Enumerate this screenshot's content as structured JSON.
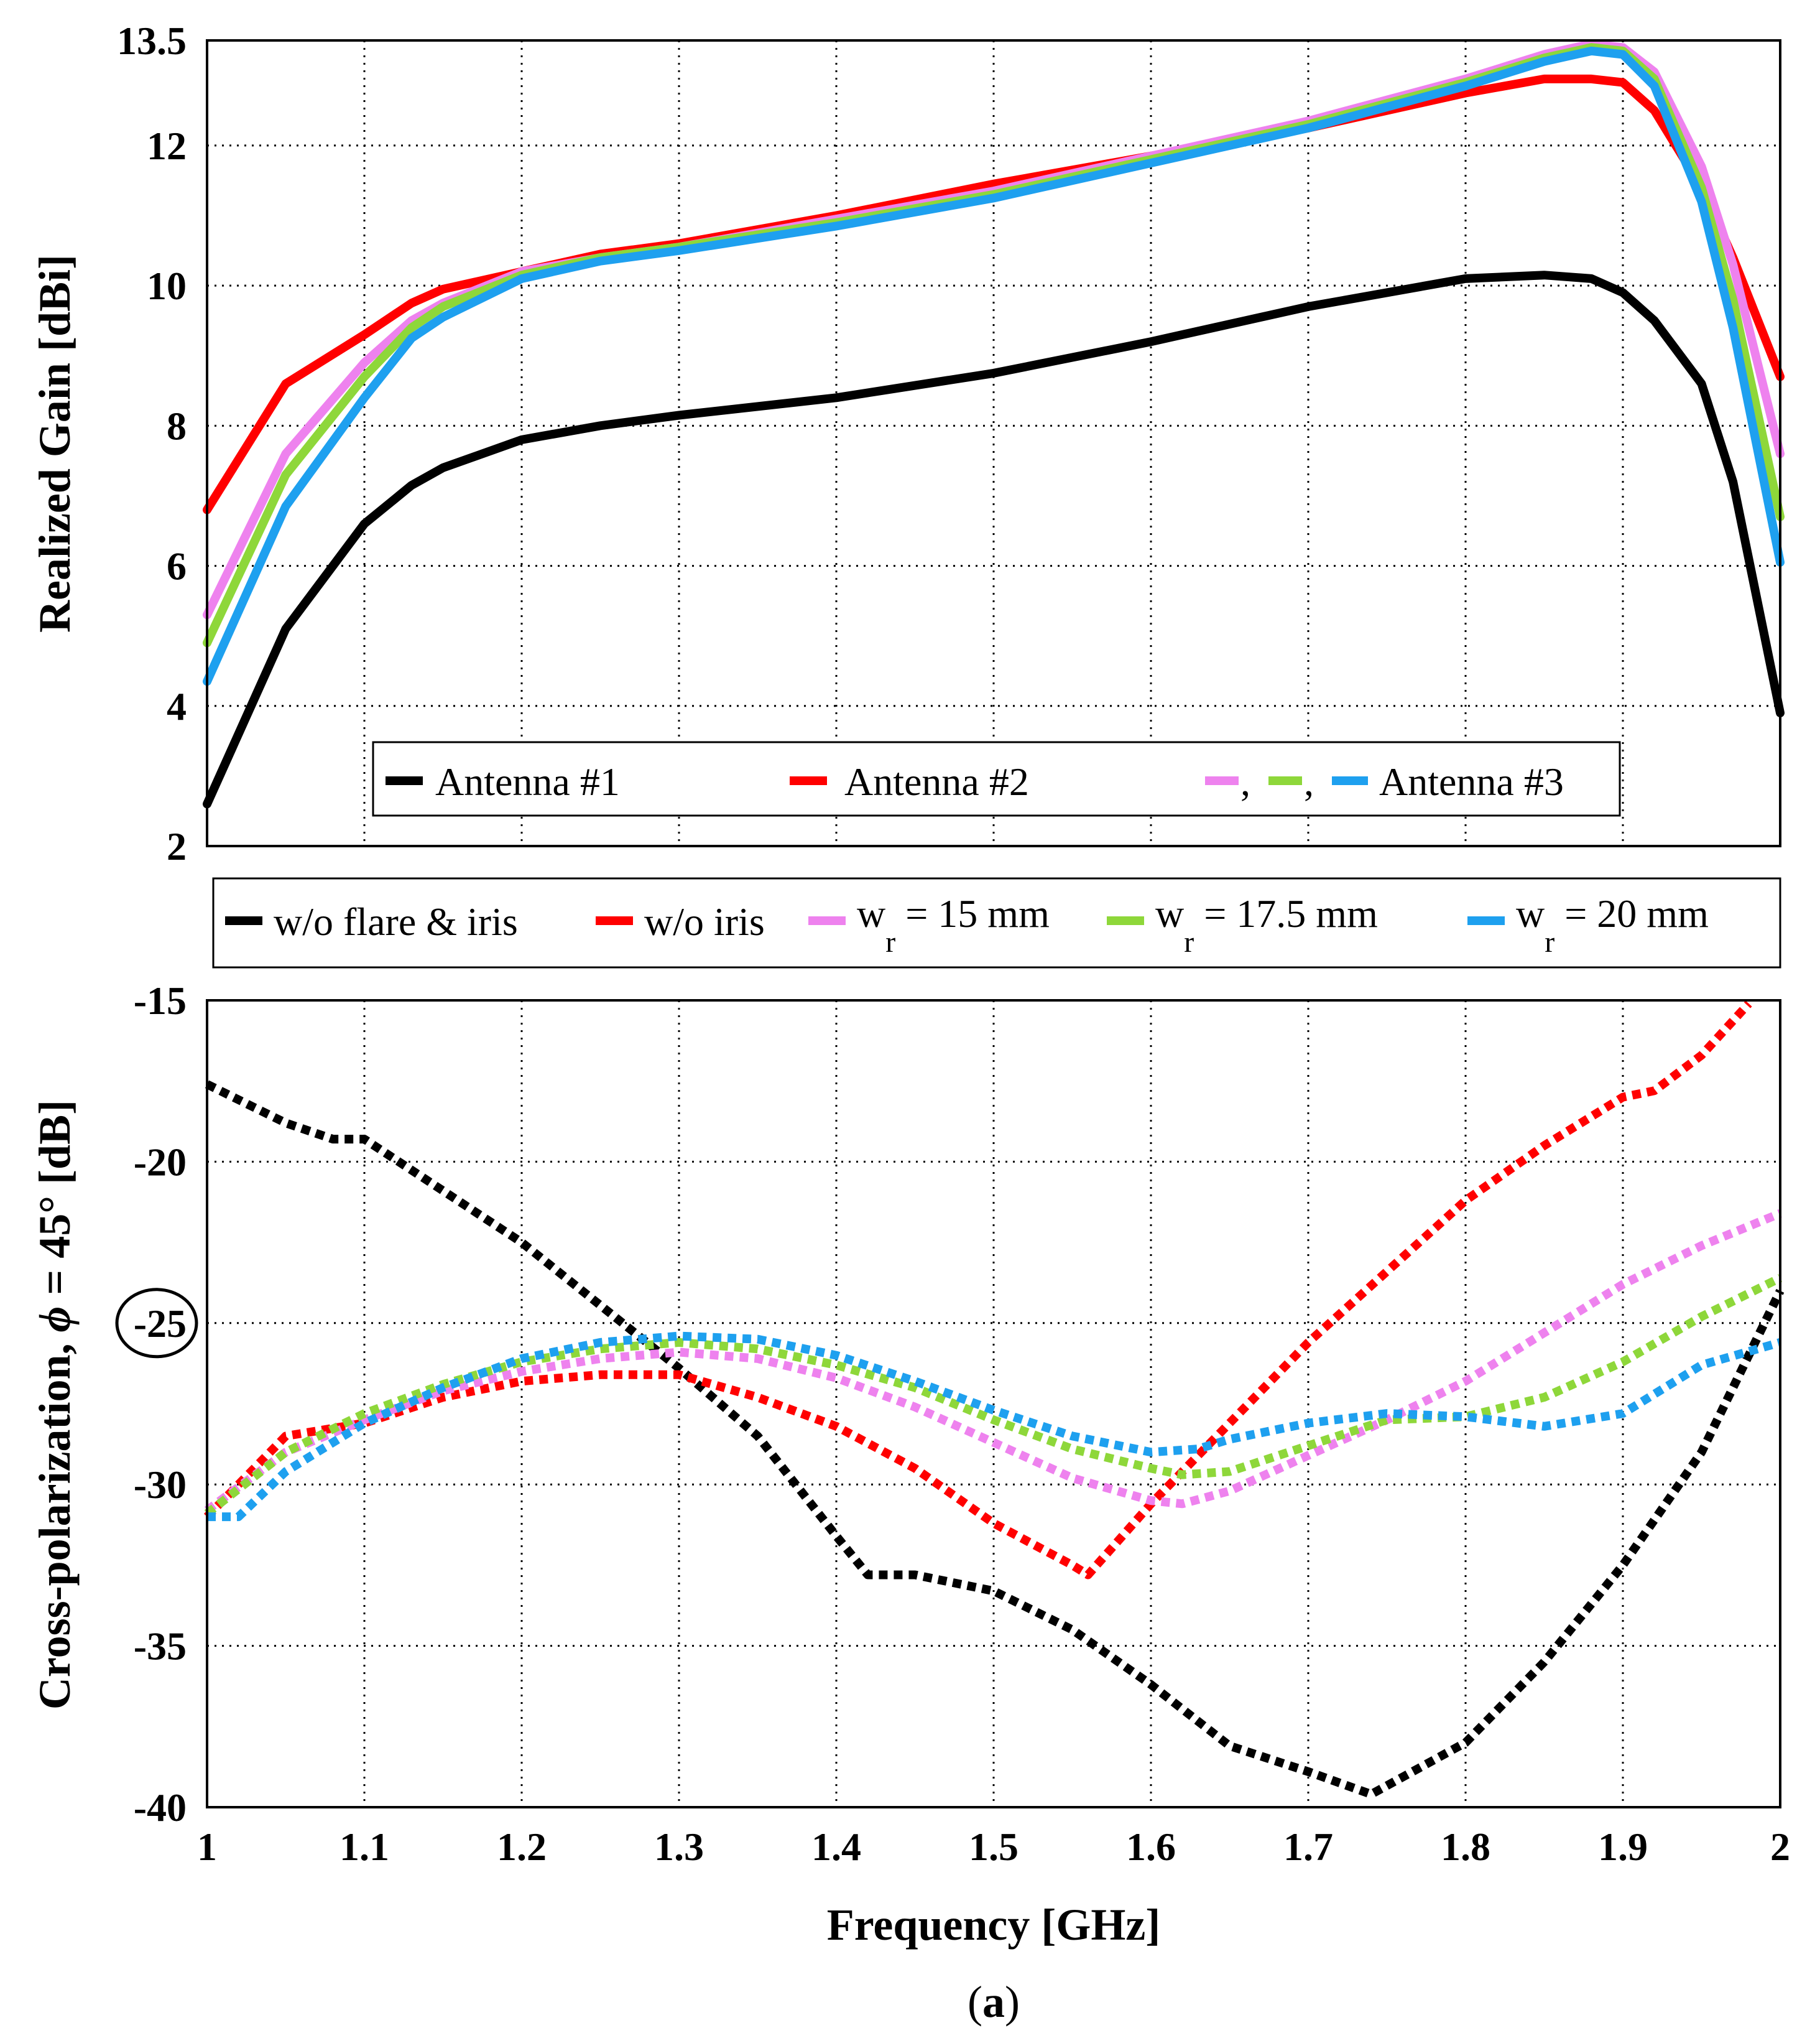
{
  "figure_caption_letter": "a",
  "chart_data": [
    {
      "type": "line",
      "name": "realized-gain",
      "xlabel": "",
      "ylabel": "Realized Gain [dBi]",
      "xlim": [
        1,
        2
      ],
      "ylim": [
        2,
        13.5
      ],
      "yticks": [
        "2",
        "4",
        "6",
        "8",
        "10",
        "12",
        "13.5"
      ],
      "xticks": [],
      "legend": {
        "placement": "bottom-center",
        "entries": [
          "Antenna #1",
          "Antenna #2",
          ",",
          ",",
          "Antenna #3"
        ]
      },
      "x": [
        1.0,
        1.05,
        1.1,
        1.13,
        1.15,
        1.2,
        1.25,
        1.3,
        1.4,
        1.5,
        1.6,
        1.7,
        1.8,
        1.85,
        1.88,
        1.9,
        1.92,
        1.95,
        1.97,
        2.0
      ],
      "series": [
        {
          "name": "w/o flare & iris",
          "color": "#000000",
          "style": "solid",
          "values": [
            2.6,
            5.1,
            6.6,
            7.15,
            7.4,
            7.8,
            8.0,
            8.15,
            8.4,
            8.75,
            9.2,
            9.7,
            10.1,
            10.15,
            10.1,
            9.9,
            9.5,
            8.6,
            7.2,
            3.9
          ]
        },
        {
          "name": "w/o iris",
          "color": "#ff0000",
          "style": "solid",
          "values": [
            6.8,
            8.6,
            9.3,
            9.75,
            9.95,
            10.2,
            10.45,
            10.6,
            11.0,
            11.45,
            11.85,
            12.25,
            12.75,
            12.95,
            12.95,
            12.9,
            12.5,
            11.4,
            10.4,
            8.7
          ]
        },
        {
          "name": "wr = 15 mm",
          "color": "#ee82ee",
          "style": "solid",
          "values": [
            5.3,
            7.6,
            8.9,
            9.5,
            9.75,
            10.2,
            10.4,
            10.55,
            10.95,
            11.35,
            11.85,
            12.35,
            12.95,
            13.3,
            13.45,
            13.4,
            13.05,
            11.7,
            10.3,
            7.6
          ]
        },
        {
          "name": "wr = 17.5 mm",
          "color": "#8ed73a",
          "style": "solid",
          "values": [
            4.9,
            7.3,
            8.7,
            9.4,
            9.7,
            10.15,
            10.4,
            10.55,
            10.9,
            11.3,
            11.8,
            12.3,
            12.9,
            13.25,
            13.4,
            13.35,
            12.95,
            11.4,
            9.8,
            6.7
          ]
        },
        {
          "name": "wr = 20 mm",
          "color": "#1ea0ef",
          "style": "solid",
          "values": [
            4.35,
            6.85,
            8.4,
            9.25,
            9.55,
            10.1,
            10.35,
            10.5,
            10.85,
            11.25,
            11.75,
            12.25,
            12.85,
            13.2,
            13.35,
            13.3,
            12.85,
            11.2,
            9.4,
            6.05
          ]
        }
      ]
    },
    {
      "type": "line",
      "name": "cross-polarization",
      "xlabel": "Frequency [GHz]",
      "ylabel_prefix": "Cross-polarization, ",
      "ylabel_symbol": "ϕ",
      "ylabel_suffix": " = 45° [dB]",
      "xlim": [
        1,
        2
      ],
      "ylim": [
        -40,
        -15
      ],
      "yticks": [
        "-40",
        "-35",
        "-30",
        "-25",
        "-20",
        "-15"
      ],
      "circled_tick": "-25",
      "xticks": [
        "1",
        "1.1",
        "1.2",
        "1.3",
        "1.4",
        "1.5",
        "1.6",
        "1.7",
        "1.8",
        "1.9",
        "2"
      ],
      "legend": {
        "placement": "top-outside",
        "entries": [
          "w/o flare & iris",
          "w/o iris",
          "w",
          "w",
          "w"
        ],
        "subscripts": [
          "",
          "",
          "r",
          "r",
          "r"
        ],
        "suffixes": [
          "",
          "",
          " = 15 mm",
          " = 17.5 mm",
          " = 20 mm"
        ]
      },
      "series": [
        {
          "name": "w/o flare & iris",
          "color": "#000000",
          "style": "dotted",
          "x": [
            1.0,
            1.05,
            1.08,
            1.1,
            1.2,
            1.3,
            1.35,
            1.4,
            1.42,
            1.45,
            1.5,
            1.55,
            1.6,
            1.65,
            1.7,
            1.74,
            1.8,
            1.85,
            1.9,
            1.95,
            2.0
          ],
          "values": [
            -17.6,
            -18.8,
            -19.3,
            -19.3,
            -22.5,
            -26.4,
            -28.5,
            -31.6,
            -32.8,
            -32.8,
            -33.3,
            -34.5,
            -36.2,
            -38.1,
            -38.9,
            -39.6,
            -38.0,
            -35.5,
            -32.5,
            -29.0,
            -24.0
          ]
        },
        {
          "name": "w/o iris",
          "color": "#ff0000",
          "style": "dotted",
          "x": [
            1.0,
            1.05,
            1.1,
            1.15,
            1.2,
            1.25,
            1.3,
            1.35,
            1.4,
            1.45,
            1.5,
            1.55,
            1.56,
            1.6,
            1.7,
            1.8,
            1.85,
            1.9,
            1.92,
            1.95,
            1.98
          ],
          "values": [
            -31.0,
            -28.5,
            -28.1,
            -27.3,
            -26.8,
            -26.6,
            -26.6,
            -27.3,
            -28.2,
            -29.5,
            -31.2,
            -32.5,
            -32.8,
            -30.6,
            -25.6,
            -21.2,
            -19.5,
            -18.0,
            -17.8,
            -16.7,
            -15.1
          ]
        },
        {
          "name": "wr = 15 mm",
          "color": "#ee82ee",
          "style": "dotted",
          "x": [
            1.0,
            1.05,
            1.1,
            1.15,
            1.2,
            1.25,
            1.3,
            1.35,
            1.4,
            1.45,
            1.5,
            1.55,
            1.6,
            1.62,
            1.65,
            1.7,
            1.75,
            1.8,
            1.85,
            1.9,
            1.95,
            2.0
          ],
          "values": [
            -30.8,
            -29.0,
            -28.0,
            -27.1,
            -26.5,
            -26.1,
            -25.9,
            -26.1,
            -26.7,
            -27.6,
            -28.7,
            -29.8,
            -30.5,
            -30.6,
            -30.2,
            -29.1,
            -28.0,
            -26.8,
            -25.3,
            -23.8,
            -22.6,
            -21.6
          ]
        },
        {
          "name": "wr = 17.5 mm",
          "color": "#8ed73a",
          "style": "dotted",
          "x": [
            1.0,
            1.05,
            1.1,
            1.15,
            1.2,
            1.25,
            1.3,
            1.35,
            1.4,
            1.45,
            1.5,
            1.55,
            1.6,
            1.62,
            1.65,
            1.7,
            1.75,
            1.8,
            1.85,
            1.9,
            1.95,
            2.0
          ],
          "values": [
            -30.9,
            -29.0,
            -27.8,
            -26.9,
            -26.2,
            -25.8,
            -25.6,
            -25.8,
            -26.3,
            -27.0,
            -28.0,
            -28.9,
            -29.5,
            -29.7,
            -29.6,
            -28.8,
            -28.0,
            -27.9,
            -27.3,
            -26.2,
            -24.8,
            -23.6
          ]
        },
        {
          "name": "wr = 20 mm",
          "color": "#1ea0ef",
          "style": "dotted",
          "x": [
            1.0,
            1.02,
            1.05,
            1.1,
            1.15,
            1.2,
            1.25,
            1.3,
            1.35,
            1.4,
            1.45,
            1.5,
            1.55,
            1.6,
            1.63,
            1.65,
            1.7,
            1.75,
            1.8,
            1.85,
            1.9,
            1.95,
            2.0
          ],
          "values": [
            -31.0,
            -31.0,
            -29.6,
            -28.1,
            -27.0,
            -26.1,
            -25.6,
            -25.4,
            -25.5,
            -26.0,
            -26.8,
            -27.7,
            -28.5,
            -29.0,
            -28.9,
            -28.6,
            -28.1,
            -27.8,
            -27.9,
            -28.2,
            -27.8,
            -26.3,
            -25.6
          ]
        }
      ]
    }
  ]
}
